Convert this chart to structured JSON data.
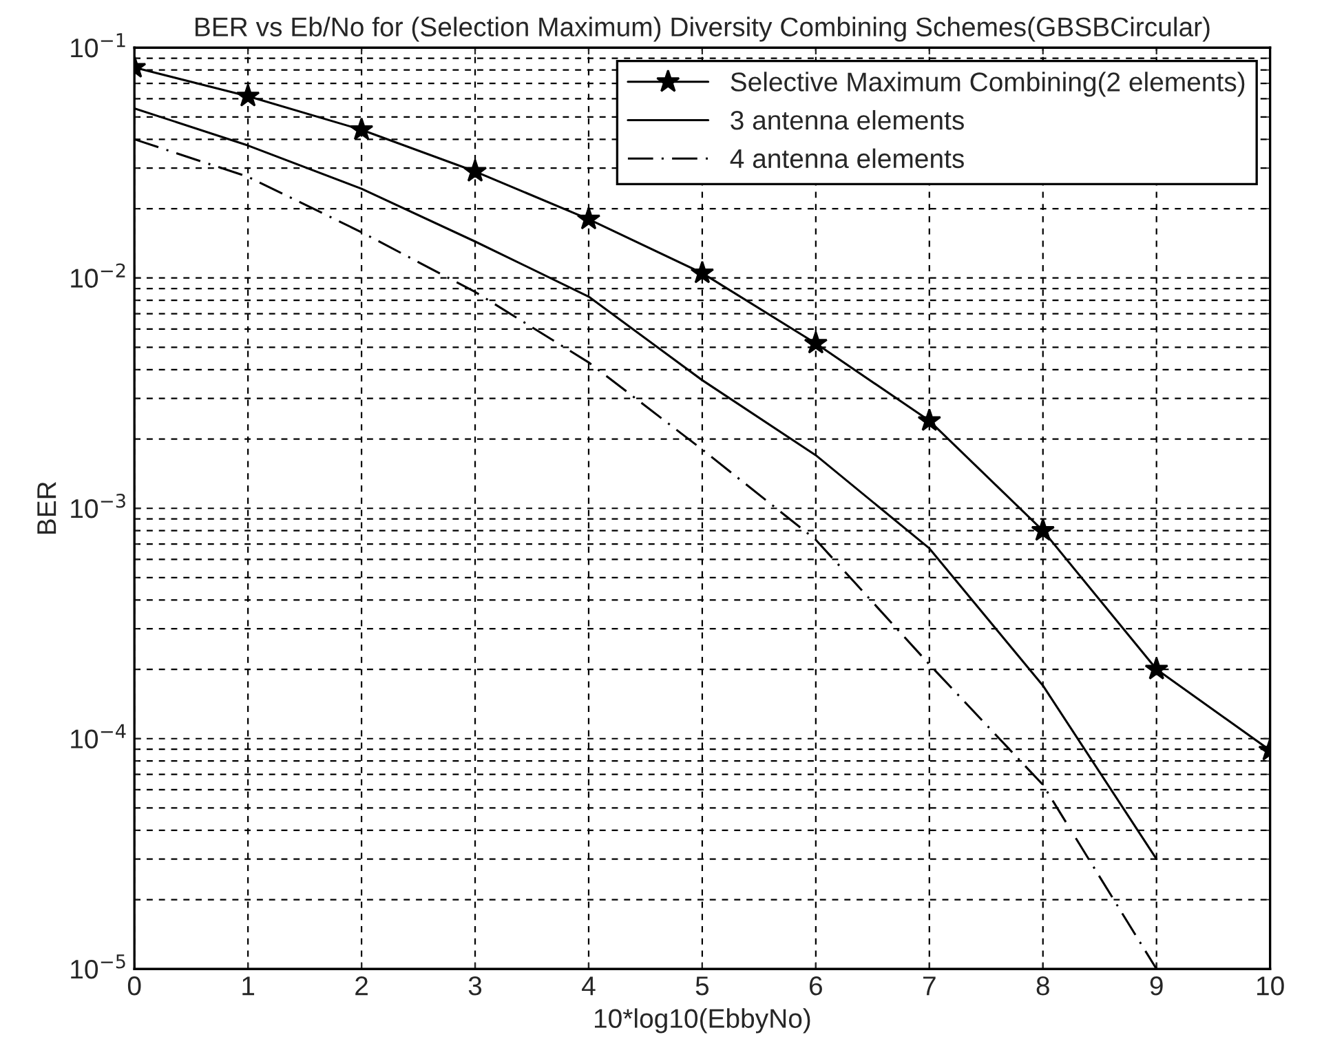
{
  "chart_data": {
    "type": "line",
    "title": "BER vs Eb/No for (Selection Maximum) Diversity Combining Schemes(GBSBCircular)",
    "xlabel": "10*log10(EbbyNo)",
    "ylabel": "BER",
    "x": [
      0,
      1,
      2,
      3,
      4,
      5,
      6,
      7,
      8,
      9,
      10
    ],
    "series": [
      {
        "name": "Selective Maximum Combining(2 elements)",
        "color": "#000000",
        "marker": "star",
        "line_style": "solid",
        "values": [
          0.082,
          0.0615,
          0.044,
          0.029,
          0.018,
          0.0105,
          0.0052,
          0.0024,
          0.0008,
          0.0002,
          8.9e-05
        ]
      },
      {
        "name": "3 antenna elements",
        "color": "#000000",
        "marker": "none",
        "line_style": "solid",
        "values": [
          0.0545,
          0.0376,
          0.0244,
          0.0144,
          0.0083,
          0.0036,
          0.0017,
          0.00067,
          0.00017,
          3e-05,
          null
        ]
      },
      {
        "name": "4 antenna elements",
        "color": "#000000",
        "marker": "none",
        "line_style": "dashed",
        "values": [
          0.04,
          0.0275,
          0.0158,
          0.0087,
          0.0043,
          0.0018,
          0.00073,
          0.00021,
          6.3e-05,
          1e-05,
          null
        ]
      }
    ],
    "log": "y",
    "xlim": [
      0,
      10
    ],
    "ylim": [
      1e-05,
      0.1
    ],
    "xticks": [
      0,
      1,
      2,
      3,
      4,
      5,
      6,
      7,
      8,
      9,
      10
    ],
    "yticks": [
      {
        "value": 1e-05,
        "label": "10$^{−5}$"
      },
      {
        "value": 0.0001,
        "label": "10$^{−4}$"
      },
      {
        "value": 0.001,
        "label": "10$^{−3}$"
      },
      {
        "value": 0.01,
        "label": "10$^{−2}$"
      },
      {
        "value": 0.1,
        "label": "10$^{−1}$"
      }
    ],
    "grid": true,
    "legend": "top right"
  }
}
